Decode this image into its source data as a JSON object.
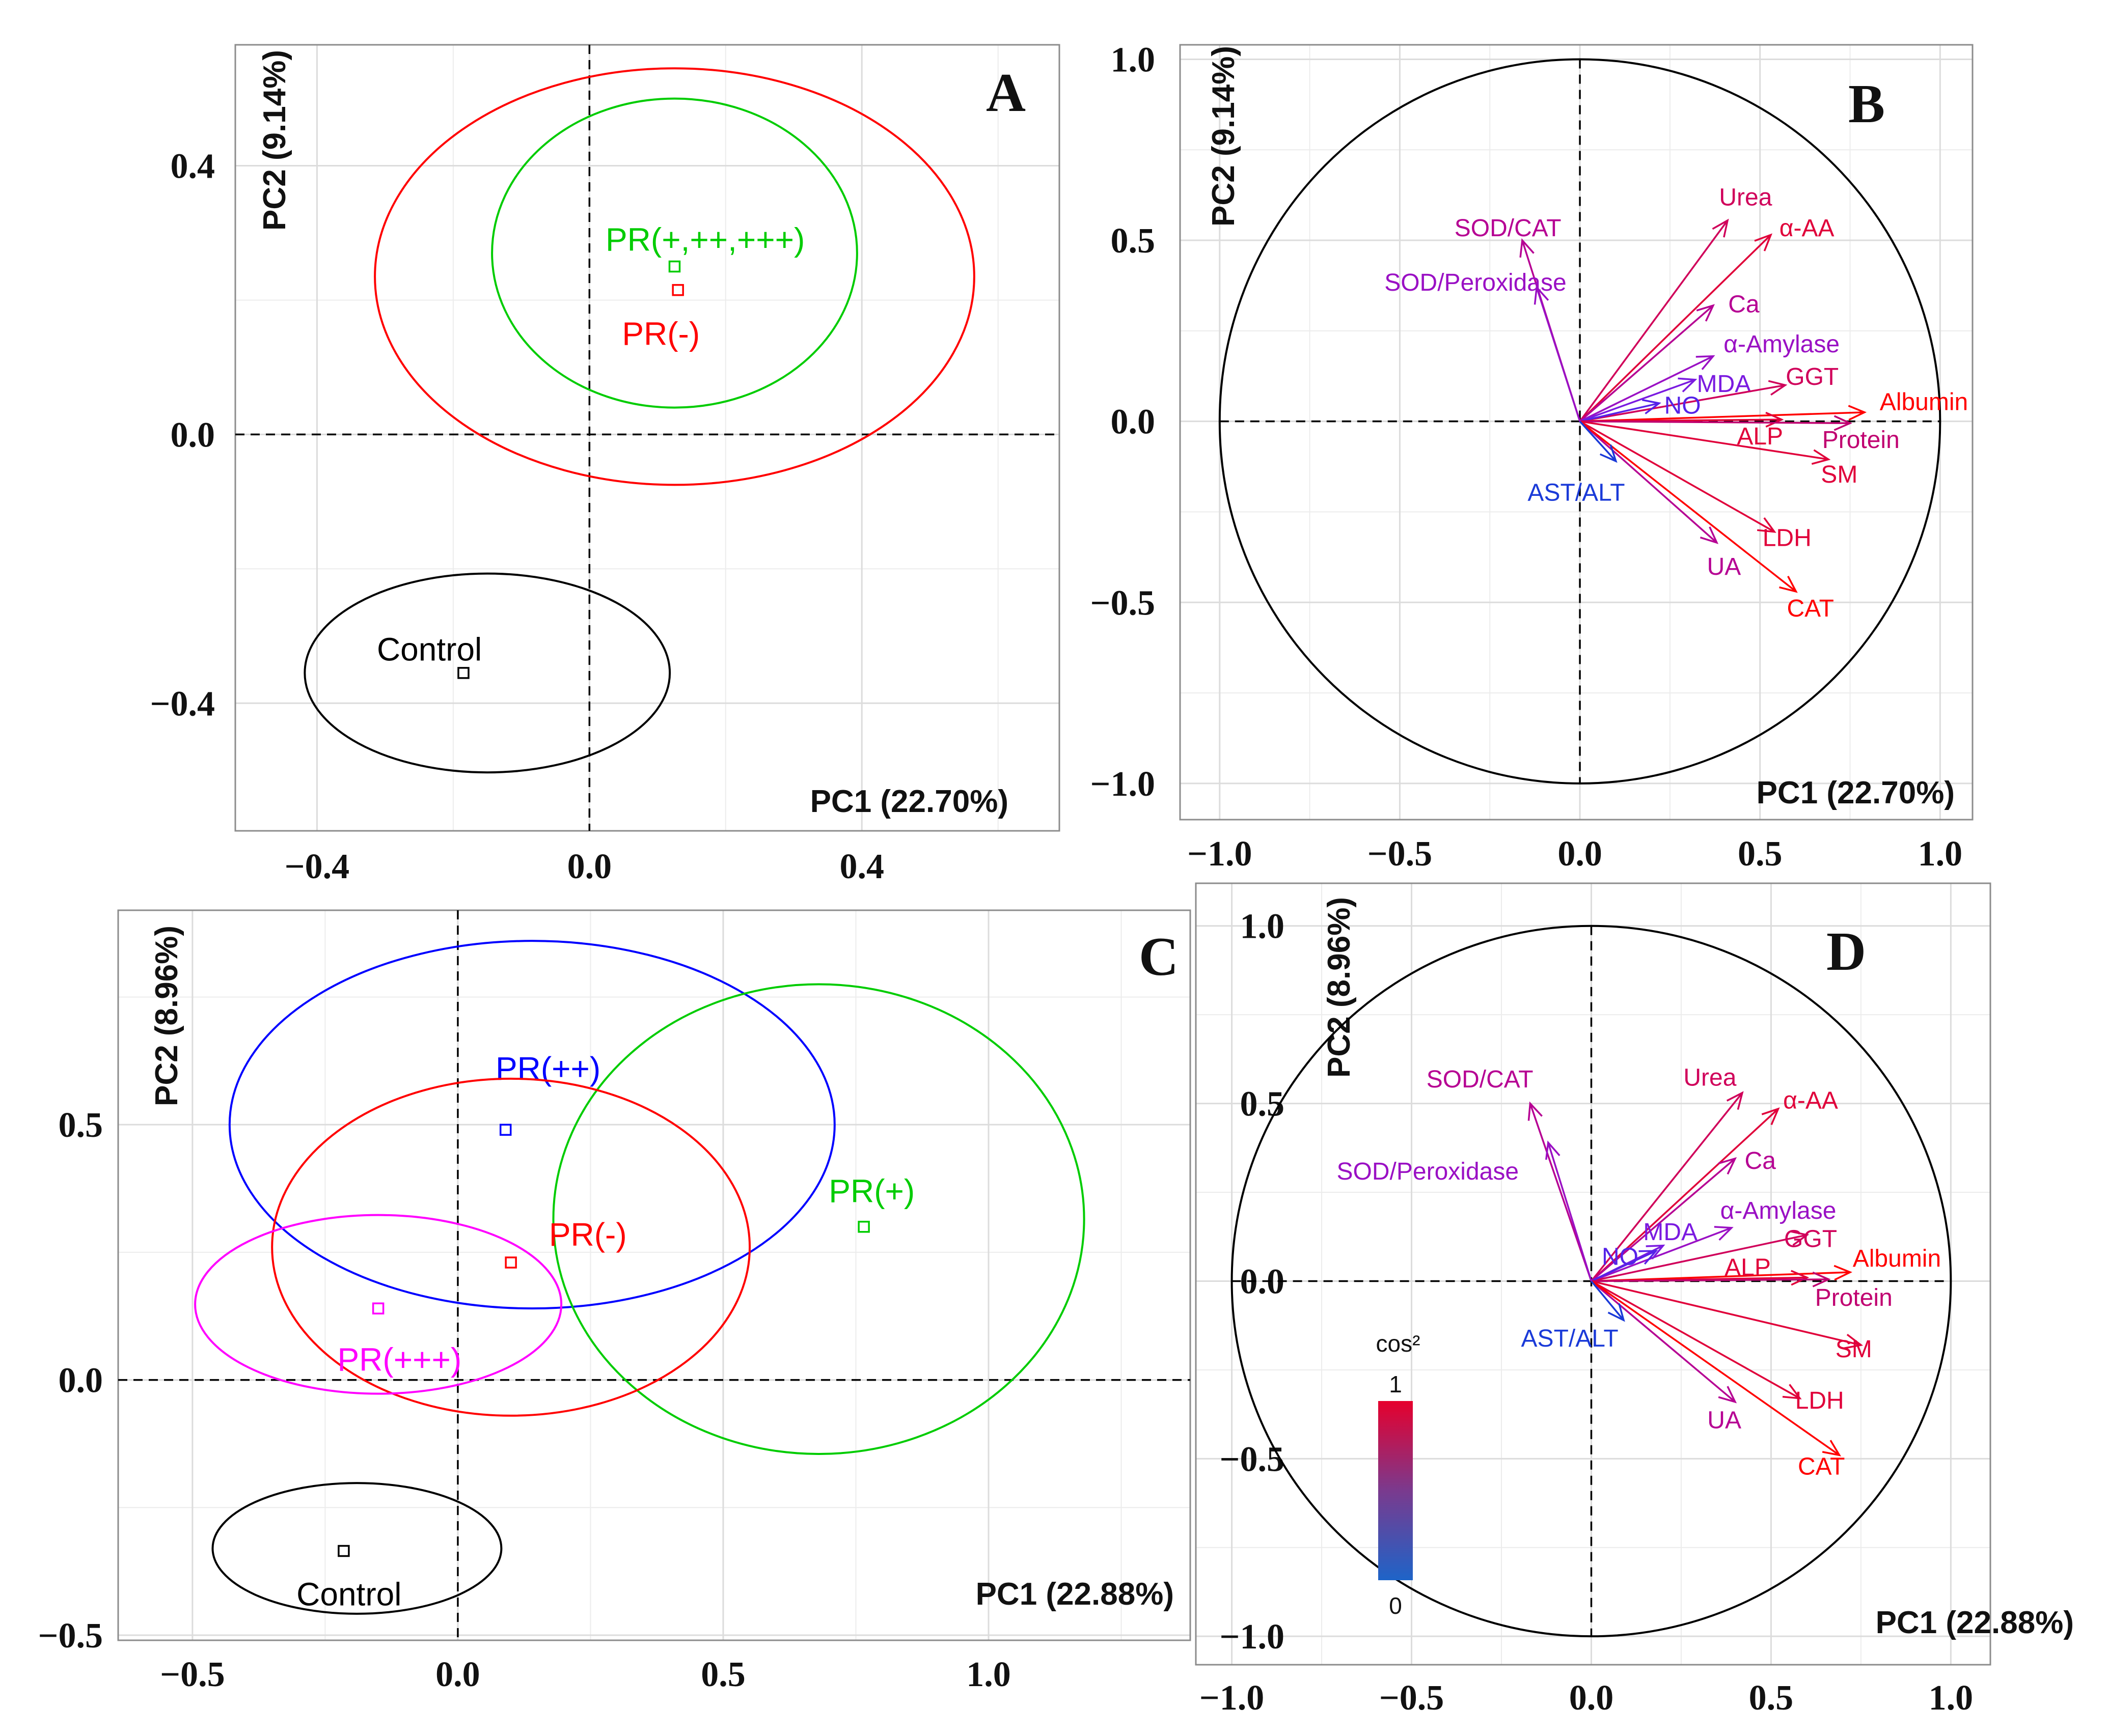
{
  "chart_data": [
    {
      "panel": "A",
      "type": "scatter",
      "xlabel": "PC1 (22.70%)",
      "ylabel": "PC2 (9.14%)",
      "xlim": [
        -0.52,
        0.69
      ],
      "ylim": [
        -0.59,
        0.58
      ],
      "xticks": [
        -0.4,
        0.0,
        0.4
      ],
      "yticks": [
        -0.4,
        0.0,
        0.4
      ],
      "xtick_labels": [
        "−0.4",
        "0.0",
        "0.4"
      ],
      "ytick_labels": [
        "−0.4",
        "0.0",
        "0.4"
      ],
      "groups": [
        {
          "name": "PR(+,++,+++)",
          "color": "#00cc00",
          "center": [
            0.125,
            0.25
          ],
          "ellipse": {
            "cx": 0.125,
            "cy": 0.27,
            "rx": 0.268,
            "ry": 0.23
          },
          "label_pos": [
            0.17,
            0.29
          ]
        },
        {
          "name": "PR(-)",
          "color": "#ff0000",
          "center": [
            0.13,
            0.215
          ],
          "ellipse": {
            "cx": 0.125,
            "cy": 0.235,
            "rx": 0.44,
            "ry": 0.31
          },
          "label_pos": [
            0.105,
            0.15
          ]
        },
        {
          "name": "Control",
          "color": "#000000",
          "center": [
            -0.185,
            -0.355
          ],
          "ellipse": {
            "cx": -0.15,
            "cy": -0.355,
            "rx": 0.268,
            "ry": 0.148
          },
          "label_pos": [
            -0.235,
            -0.32
          ]
        }
      ]
    },
    {
      "panel": "B",
      "type": "biplot",
      "xlabel": "PC1 (22.70%)",
      "ylabel": "PC2 (9.14%)",
      "xlim": [
        -1.11,
        1.09
      ],
      "ylim": [
        -1.1,
        1.04
      ],
      "xticks": [
        -1.0,
        -0.5,
        0.0,
        0.5,
        1.0
      ],
      "yticks": [
        -1.0,
        -0.5,
        0.0,
        0.5,
        1.0
      ],
      "xtick_labels": [
        "−1.0",
        "−0.5",
        "0.0",
        "0.5",
        "1.0"
      ],
      "ytick_labels": [
        "−1.0",
        "−0.5",
        "0.0",
        "0.5",
        "1.0"
      ],
      "variables": [
        {
          "name": "Urea",
          "x": 0.41,
          "y": 0.555,
          "color": "#d0005a",
          "lx": 0.46,
          "ly": 0.62
        },
        {
          "name": "α-AA",
          "x": 0.53,
          "y": 0.515,
          "color": "#e0003a",
          "lx": 0.63,
          "ly": 0.535
        },
        {
          "name": "Ca",
          "x": 0.37,
          "y": 0.32,
          "color": "#b60093",
          "lx": 0.455,
          "ly": 0.325
        },
        {
          "name": "α-Amylase",
          "x": 0.37,
          "y": 0.18,
          "color": "#9a10c4",
          "lx": 0.56,
          "ly": 0.215
        },
        {
          "name": "MDA",
          "x": 0.32,
          "y": 0.115,
          "color": "#7a1ae0",
          "lx": 0.4,
          "ly": 0.105
        },
        {
          "name": "GGT",
          "x": 0.57,
          "y": 0.1,
          "color": "#d0005a",
          "lx": 0.645,
          "ly": 0.125
        },
        {
          "name": "NO",
          "x": 0.22,
          "y": 0.05,
          "color": "#5522e8",
          "lx": 0.285,
          "ly": 0.045
        },
        {
          "name": "Albumin",
          "x": 0.79,
          "y": 0.025,
          "color": "#ff0000",
          "lx": 0.955,
          "ly": 0.055
        },
        {
          "name": "ALP",
          "x": 0.56,
          "y": 0.005,
          "color": "#e0003a",
          "lx": 0.5,
          "ly": -0.04
        },
        {
          "name": "Protein",
          "x": 0.75,
          "y": -0.005,
          "color": "#c00070",
          "lx": 0.78,
          "ly": -0.05
        },
        {
          "name": "SM",
          "x": 0.69,
          "y": -0.105,
          "color": "#e0003a",
          "lx": 0.72,
          "ly": -0.145
        },
        {
          "name": "LDH",
          "x": 0.54,
          "y": -0.305,
          "color": "#e0003a",
          "lx": 0.575,
          "ly": -0.32
        },
        {
          "name": "UA",
          "x": 0.38,
          "y": -0.335,
          "color": "#b60093",
          "lx": 0.4,
          "ly": -0.4
        },
        {
          "name": "CAT",
          "x": 0.6,
          "y": -0.47,
          "color": "#ff0000",
          "lx": 0.64,
          "ly": -0.515
        },
        {
          "name": "AST/ALT",
          "x": 0.1,
          "y": -0.11,
          "color": "#1a3ad8",
          "lx": -0.01,
          "ly": -0.195
        },
        {
          "name": "SOD/CAT",
          "x": -0.16,
          "y": 0.5,
          "color": "#b60093",
          "lx": -0.2,
          "ly": 0.535
        },
        {
          "name": "SOD/Peroxidase",
          "x": -0.12,
          "y": 0.37,
          "color": "#9a10c4",
          "lx": -0.29,
          "ly": 0.385
        }
      ]
    },
    {
      "panel": "C",
      "type": "scatter",
      "xlabel": "PC1 (22.88%)",
      "ylabel": "PC2 (8.96%)",
      "xlim": [
        -0.64,
        1.38
      ],
      "ylim": [
        -0.51,
        0.92
      ],
      "xticks": [
        -0.5,
        0.0,
        0.5,
        1.0
      ],
      "yticks": [
        -0.5,
        0.0,
        0.5
      ],
      "xtick_labels": [
        "−0.5",
        "0.0",
        "0.5",
        "1.0"
      ],
      "ytick_labels": [
        "−0.5",
        "0.0",
        "0.5"
      ],
      "groups": [
        {
          "name": "PR(++)",
          "color": "#0000ff",
          "center": [
            0.09,
            0.49
          ],
          "ellipse": {
            "cx": 0.14,
            "cy": 0.5,
            "rx": 0.57,
            "ry": 0.36
          },
          "label_pos": [
            0.17,
            0.61
          ]
        },
        {
          "name": "PR(+)",
          "color": "#00cc00",
          "center": [
            0.765,
            0.3
          ],
          "ellipse": {
            "cx": 0.68,
            "cy": 0.315,
            "rx": 0.5,
            "ry": 0.46
          },
          "label_pos": [
            0.78,
            0.37
          ]
        },
        {
          "name": "PR(-)",
          "color": "#ff0000",
          "center": [
            0.1,
            0.23
          ],
          "ellipse": {
            "cx": 0.1,
            "cy": 0.26,
            "rx": 0.45,
            "ry": 0.33
          },
          "label_pos": [
            0.245,
            0.285
          ]
        },
        {
          "name": "PR(+++)",
          "color": "#ff00ff",
          "center": [
            -0.15,
            0.14
          ],
          "ellipse": {
            "cx": -0.15,
            "cy": 0.148,
            "rx": 0.345,
            "ry": 0.175
          },
          "label_pos": [
            -0.11,
            0.04
          ]
        },
        {
          "name": "Control",
          "color": "#000000",
          "center": [
            -0.215,
            -0.335
          ],
          "ellipse": {
            "cx": -0.19,
            "cy": -0.33,
            "rx": 0.272,
            "ry": 0.128
          },
          "label_pos": [
            -0.205,
            -0.42
          ]
        }
      ]
    },
    {
      "panel": "D",
      "type": "biplot",
      "xlabel": "PC1 (22.88%)",
      "ylabel": "PC2 (8.96%)",
      "xlim": [
        -1.1,
        1.11
      ],
      "ylim": [
        -1.08,
        1.12
      ],
      "xticks": [
        -1.0,
        -0.5,
        0.0,
        0.5,
        1.0
      ],
      "yticks": [
        -1.0,
        -0.5,
        0.0,
        0.5,
        1.0
      ],
      "xtick_labels": [
        "−1.0",
        "−0.5",
        "0.0",
        "0.5",
        "1.0"
      ],
      "ytick_labels": [
        "−1.0",
        "−0.5",
        "0.0",
        "0.5",
        "1.0"
      ],
      "legend": {
        "title": "cos²",
        "max_label": "1",
        "min_label": "0",
        "low_color": "#1e64c8",
        "high_color": "#e6002d"
      },
      "variables": [
        {
          "name": "Urea",
          "x": 0.42,
          "y": 0.53,
          "color": "#d0005a",
          "lx": 0.33,
          "ly": 0.575
        },
        {
          "name": "α-AA",
          "x": 0.52,
          "y": 0.485,
          "color": "#e0003a",
          "lx": 0.61,
          "ly": 0.51
        },
        {
          "name": "Ca",
          "x": 0.4,
          "y": 0.345,
          "color": "#b60093",
          "lx": 0.47,
          "ly": 0.34
        },
        {
          "name": "α-Amylase",
          "x": 0.39,
          "y": 0.15,
          "color": "#9a10c4",
          "lx": 0.52,
          "ly": 0.2
        },
        {
          "name": "MDA",
          "x": 0.2,
          "y": 0.1,
          "color": "#7a1ae0",
          "lx": 0.22,
          "ly": 0.14
        },
        {
          "name": "GGT",
          "x": 0.6,
          "y": 0.13,
          "color": "#d0005a",
          "lx": 0.61,
          "ly": 0.12
        },
        {
          "name": "NO",
          "x": 0.18,
          "y": 0.085,
          "color": "#5522e8",
          "lx": 0.08,
          "ly": 0.07
        },
        {
          "name": "Albumin",
          "x": 0.72,
          "y": 0.025,
          "color": "#ff0000",
          "lx": 0.85,
          "ly": 0.065
        },
        {
          "name": "ALP",
          "x": 0.6,
          "y": 0.01,
          "color": "#e0003a",
          "lx": 0.435,
          "ly": 0.04
        },
        {
          "name": "Protein",
          "x": 0.66,
          "y": 0.005,
          "color": "#c00070",
          "lx": 0.73,
          "ly": -0.045
        },
        {
          "name": "SM",
          "x": 0.75,
          "y": -0.18,
          "color": "#e0003a",
          "lx": 0.73,
          "ly": -0.19
        },
        {
          "name": "LDH",
          "x": 0.58,
          "y": -0.33,
          "color": "#e0003a",
          "lx": 0.635,
          "ly": -0.335
        },
        {
          "name": "UA",
          "x": 0.4,
          "y": -0.34,
          "color": "#b60093",
          "lx": 0.37,
          "ly": -0.39
        },
        {
          "name": "CAT",
          "x": 0.69,
          "y": -0.49,
          "color": "#ff0000",
          "lx": 0.64,
          "ly": -0.52
        },
        {
          "name": "AST/ALT",
          "x": 0.09,
          "y": -0.11,
          "color": "#1a3ad8",
          "lx": -0.06,
          "ly": -0.16
        },
        {
          "name": "SOD/CAT",
          "x": -0.17,
          "y": 0.5,
          "color": "#b60093",
          "lx": -0.31,
          "ly": 0.57
        },
        {
          "name": "SOD/Peroxidase",
          "x": -0.12,
          "y": 0.39,
          "color": "#9a10c4",
          "lx": -0.455,
          "ly": 0.31
        }
      ]
    }
  ]
}
